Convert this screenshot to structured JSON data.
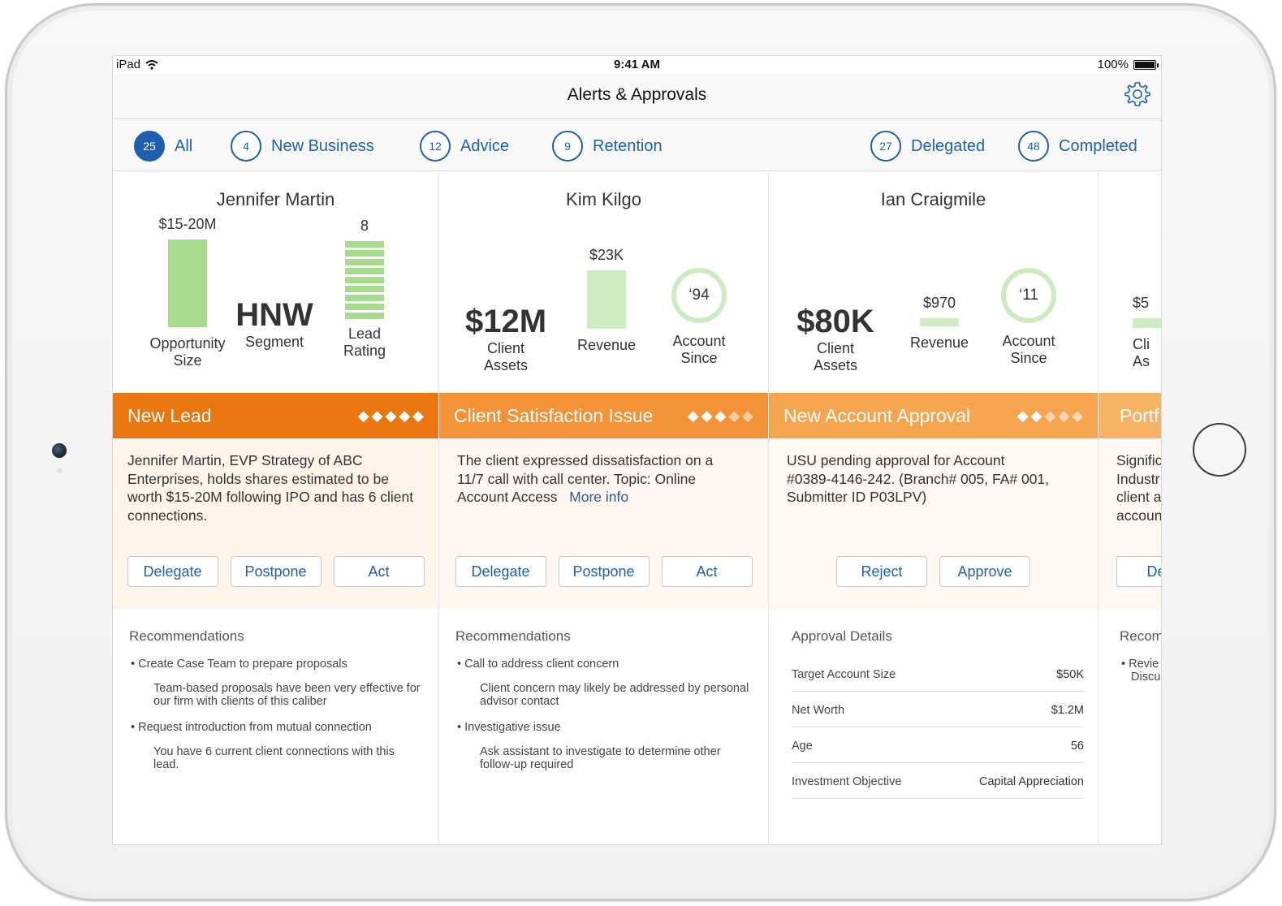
{
  "status": {
    "carrier": "iPad",
    "time": "9:41 AM",
    "battery": "100%"
  },
  "nav": {
    "title": "Alerts & Approvals"
  },
  "filters": [
    {
      "count": "25",
      "label": "All"
    },
    {
      "count": "4",
      "label": "New Business"
    },
    {
      "count": "12",
      "label": "Advice"
    },
    {
      "count": "9",
      "label": "Retention"
    },
    {
      "count": "27",
      "label": "Delegated"
    },
    {
      "count": "48",
      "label": "Completed"
    }
  ],
  "cards": [
    {
      "name": "Jennifer Martin",
      "metrics": {
        "opportunity_value": "$15-20M",
        "opportunity_label_1": "Opportunity",
        "opportunity_label_2": "Size",
        "segment_value": "HNW",
        "segment_label": "Segment",
        "rating_value": "8",
        "rating_level": 8,
        "rating_label_1": "Lead",
        "rating_label_2": "Rating"
      },
      "alert": {
        "title": "New Lead",
        "priority": 5,
        "color": "#e9760f",
        "body": "Jennifer Martin, EVP Strategy of ABC Enterprises, holds shares estimated to be worth $15-20M following IPO and has 6 client connections."
      },
      "actions": [
        "Delegate",
        "Postpone",
        "Act"
      ],
      "recommendations": {
        "title": "Recommendations",
        "items": [
          {
            "item": "Create Case Team to prepare proposals",
            "note": "Team-based proposals have been very effective for our firm with clients of this caliber"
          },
          {
            "item": "Request introduction from mutual connection",
            "note": "You have 6 current client connections with this lead."
          }
        ]
      }
    },
    {
      "name": "Kim Kilgo",
      "metrics": {
        "assets_value": "$12M",
        "assets_label_1": "Client",
        "assets_label_2": "Assets",
        "revenue_value": "$23K",
        "revenue_label": "Revenue",
        "since_value": "‘94",
        "since_label_1": "Account",
        "since_label_2": "Since"
      },
      "alert": {
        "title": "Client Satisfaction Issue",
        "priority": 3,
        "color": "#f39237",
        "body": "The client expressed dissatisfaction on a 11/7 call with call center.  Topic: Online Account Access",
        "link": "More info"
      },
      "actions": [
        "Delegate",
        "Postpone",
        "Act"
      ],
      "recommendations": {
        "title": "Recommendations",
        "items": [
          {
            "item": "Call to address client concern",
            "note": "Client concern may likely be addressed by personal advisor contact"
          },
          {
            "item": "Investigative issue",
            "note": "Ask assistant to investigate to determine other follow-up required"
          }
        ]
      }
    },
    {
      "name": "Ian Craigmile",
      "metrics": {
        "assets_value": "$80K",
        "assets_label_1": "Client",
        "assets_label_2": "Assets",
        "revenue_value": "$970",
        "revenue_label": "Revenue",
        "since_value": "‘11",
        "since_label_1": "Account",
        "since_label_2": "Since"
      },
      "alert": {
        "title": "New Account Approval",
        "priority": 2,
        "color": "#f6a54f",
        "body": "USU pending approval for Account #0389-4146-242. (Branch# 005, FA# 001, Submitter ID P03LPV)"
      },
      "actions": [
        "Reject",
        "Approve"
      ],
      "details": {
        "title": "Approval Details",
        "rows": [
          {
            "label": "Target Account Size",
            "value": "$50K"
          },
          {
            "label": "Net Worth",
            "value": "$1.2M"
          },
          {
            "label": "Age",
            "value": "56"
          },
          {
            "label": "Investment Objective",
            "value": "Capital Appreciation"
          }
        ]
      }
    },
    {
      "partial": true,
      "metrics": {
        "assets_value": "$5",
        "assets_label_1": "Cli",
        "assets_label_2": "As"
      },
      "alert": {
        "title": "Portf",
        "color": "#f7b263",
        "body_lines": [
          "Signific",
          "Industr",
          "client a",
          "accoun"
        ]
      },
      "actions": [
        "Dele"
      ],
      "recommendations": {
        "title": "Recom",
        "item_lines": [
          "Revie",
          "Discu"
        ]
      }
    }
  ]
}
